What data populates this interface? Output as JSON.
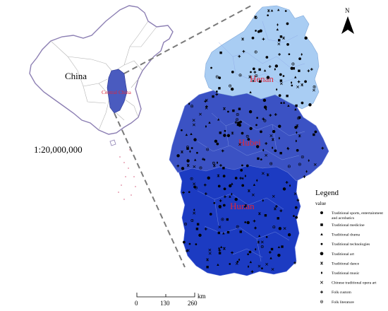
{
  "map": {
    "inset": {
      "country_label": "China",
      "region_label": "Central China",
      "scale_ratio": "1:20,000,000"
    },
    "provinces": [
      {
        "name": "Henan",
        "color": "#a9cdf3"
      },
      {
        "name": "Hubei",
        "color": "#3b52c4"
      },
      {
        "name": "Hunan",
        "color": "#1c3bc2"
      }
    ],
    "north_label": "N",
    "legend": {
      "title": "Legend",
      "subtitle": "value",
      "items": [
        {
          "label": "Traditional sports, entertainment and acrobatics",
          "symbol": "circle-large"
        },
        {
          "label": "Traditional medicine",
          "symbol": "square"
        },
        {
          "label": "Traditional drama",
          "symbol": "triangle"
        },
        {
          "label": "Traditional technologies",
          "symbol": "circle-small"
        },
        {
          "label": "Traditional art",
          "symbol": "circle-bold"
        },
        {
          "label": "Traditional dance",
          "symbol": "star"
        },
        {
          "label": "Traditional music",
          "symbol": "diamond"
        },
        {
          "label": "Chinese traditional opera art",
          "symbol": "cross"
        },
        {
          "label": "Folk custom",
          "symbol": "plus"
        },
        {
          "label": "Folk literature",
          "symbol": "circle-dot"
        }
      ]
    },
    "scale_bar": {
      "ticks": [
        "0",
        "130",
        "260"
      ],
      "unit": "km"
    }
  }
}
